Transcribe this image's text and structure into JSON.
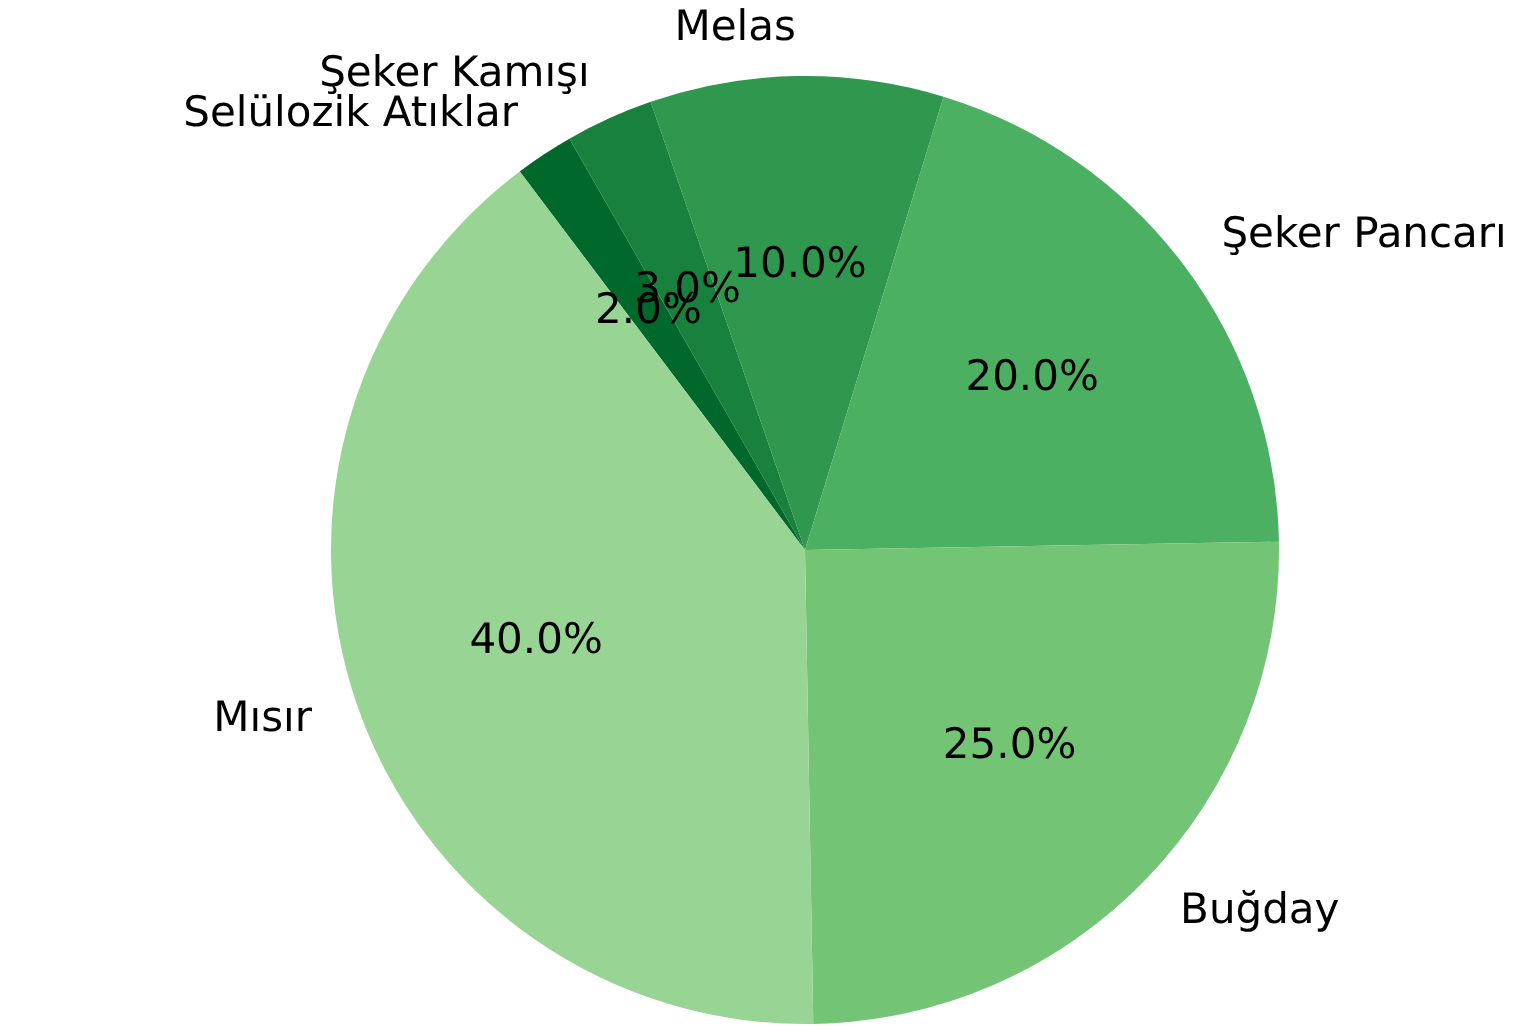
{
  "chart_data": {
    "type": "pie",
    "categories": [
      "Selülozik Atıklar",
      "Şeker Kamışı",
      "Melas",
      "Şeker Pancarı",
      "Buğday",
      "Mısır"
    ],
    "values": [
      2,
      3,
      10,
      20,
      25,
      40
    ],
    "colors": [
      "#00682a",
      "#17813d",
      "#2f974e",
      "#4bb062",
      "#74c476",
      "#98d594"
    ],
    "value_labels": [
      "2.0%",
      "3.0%",
      "10.0%",
      "20.0%",
      "25.0%",
      "40.0%"
    ],
    "legend": false
  }
}
